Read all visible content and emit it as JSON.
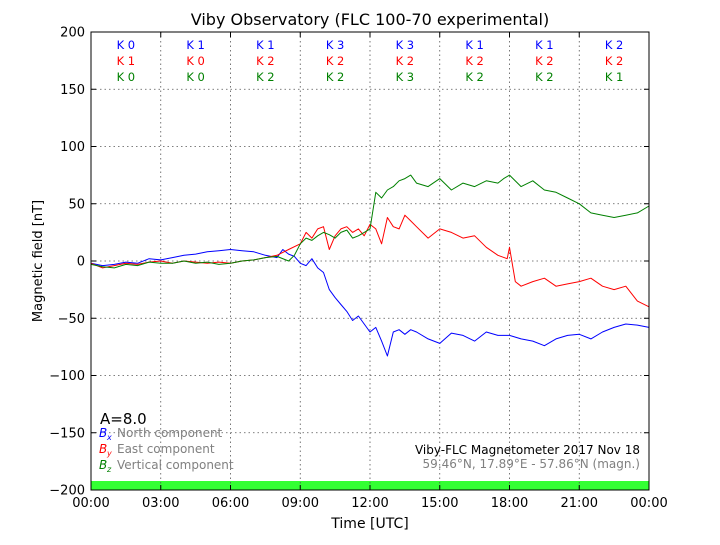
{
  "chart_data": {
    "type": "line",
    "title": "Viby Observatory (FLC 100-70 experimental)",
    "xlabel": "Time [UTC]",
    "ylabel": "Magnetic field [nT]",
    "x_ticks": [
      "00:00",
      "03:00",
      "06:00",
      "09:00",
      "12:00",
      "15:00",
      "18:00",
      "21:00",
      "00:00"
    ],
    "x_range_hours": [
      0,
      24
    ],
    "ylim": [
      -200,
      200
    ],
    "y_ticks": [
      -200,
      -150,
      -100,
      -50,
      0,
      50,
      100,
      150,
      200
    ],
    "grid": true,
    "k_index_rows": [
      {
        "label": "K",
        "color": "#0000ff",
        "values": [
          0,
          1,
          1,
          3,
          3,
          1,
          1,
          2
        ]
      },
      {
        "label": "K",
        "color": "#ff0000",
        "values": [
          1,
          0,
          2,
          2,
          2,
          2,
          2,
          2
        ]
      },
      {
        "label": "K",
        "color": "#008000",
        "values": [
          0,
          0,
          2,
          2,
          3,
          2,
          2,
          1
        ]
      }
    ],
    "a_index": "A=8.0",
    "legend_position": "bottom-left",
    "series": [
      {
        "key": "bx",
        "symbol": "B",
        "subscript": "x",
        "name": "North component",
        "color": "#0000ff",
        "x": [
          0,
          0.5,
          1,
          1.5,
          2,
          2.5,
          3,
          3.5,
          4,
          4.5,
          5,
          5.5,
          6,
          6.5,
          7,
          7.5,
          8,
          8.25,
          8.5,
          8.75,
          9,
          9.25,
          9.5,
          9.75,
          10,
          10.25,
          10.5,
          10.75,
          11,
          11.25,
          11.5,
          11.75,
          12,
          12.25,
          12.5,
          12.75,
          13,
          13.25,
          13.5,
          13.75,
          14,
          14.5,
          15,
          15.5,
          16,
          16.5,
          17,
          17.5,
          18,
          18.5,
          19,
          19.5,
          20,
          20.5,
          21,
          21.5,
          22,
          22.5,
          23,
          23.5,
          24
        ],
        "y": [
          -2,
          -4,
          -3,
          -1,
          -2,
          2,
          1,
          3,
          5,
          6,
          8,
          9,
          10,
          9,
          8,
          5,
          3,
          10,
          6,
          4,
          -2,
          -4,
          2,
          -6,
          -10,
          -25,
          -32,
          -38,
          -44,
          -52,
          -48,
          -55,
          -62,
          -58,
          -70,
          -83,
          -62,
          -60,
          -64,
          -60,
          -62,
          -68,
          -72,
          -63,
          -65,
          -70,
          -62,
          -65,
          -65,
          -68,
          -70,
          -74,
          -68,
          -65,
          -64,
          -68,
          -62,
          -58,
          -55,
          -56,
          -58
        ]
      },
      {
        "key": "by",
        "symbol": "B",
        "subscript": "y",
        "name": "East component",
        "color": "#ff0000",
        "x": [
          0,
          0.5,
          1,
          1.5,
          2,
          2.5,
          3,
          3.5,
          4,
          4.5,
          5,
          5.5,
          6,
          6.5,
          7,
          7.5,
          8,
          8.5,
          9,
          9.25,
          9.5,
          9.75,
          10,
          10.25,
          10.5,
          10.75,
          11,
          11.25,
          11.5,
          11.75,
          12,
          12.25,
          12.5,
          12.75,
          13,
          13.25,
          13.5,
          13.75,
          14,
          14.5,
          15,
          15.5,
          16,
          16.5,
          17,
          17.5,
          17.9,
          18,
          18.25,
          18.5,
          19,
          19.5,
          20,
          20.5,
          21,
          21.5,
          22,
          22.5,
          23,
          23.5,
          24
        ],
        "y": [
          -2,
          -6,
          -4,
          -2,
          -3,
          -1,
          0,
          -2,
          0,
          -1,
          -2,
          -1,
          -2,
          0,
          1,
          3,
          5,
          10,
          15,
          25,
          20,
          28,
          30,
          10,
          22,
          28,
          30,
          25,
          28,
          22,
          32,
          28,
          15,
          38,
          30,
          28,
          40,
          35,
          30,
          20,
          28,
          25,
          20,
          22,
          12,
          5,
          2,
          12,
          -18,
          -22,
          -18,
          -15,
          -22,
          -20,
          -18,
          -15,
          -22,
          -25,
          -22,
          -35,
          -40
        ]
      },
      {
        "key": "bz",
        "symbol": "B",
        "subscript": "z",
        "name": "Vertical component",
        "color": "#008000",
        "x": [
          0,
          0.5,
          1,
          1.5,
          2,
          2.5,
          3,
          3.5,
          4,
          4.5,
          5,
          5.5,
          6,
          6.5,
          7,
          7.5,
          8,
          8.5,
          8.75,
          9,
          9.25,
          9.5,
          9.75,
          10,
          10.25,
          10.5,
          10.75,
          11,
          11.25,
          11.5,
          11.75,
          12,
          12.25,
          12.5,
          12.75,
          13,
          13.25,
          13.5,
          13.75,
          14,
          14.5,
          15,
          15.5,
          16,
          16.5,
          17,
          17.5,
          17.75,
          18,
          18.5,
          19,
          19.5,
          20,
          20.5,
          21,
          21.5,
          22,
          22.5,
          23,
          23.5,
          24
        ],
        "y": [
          -3,
          -5,
          -6,
          -3,
          -4,
          -1,
          -2,
          -2,
          0,
          -2,
          -1,
          -3,
          -2,
          0,
          1,
          3,
          4,
          0,
          5,
          15,
          20,
          18,
          22,
          25,
          23,
          20,
          25,
          27,
          20,
          22,
          25,
          28,
          60,
          55,
          62,
          65,
          70,
          72,
          75,
          68,
          65,
          72,
          62,
          68,
          65,
          70,
          68,
          72,
          75,
          65,
          70,
          62,
          60,
          55,
          50,
          42,
          40,
          38,
          40,
          42,
          48
        ]
      }
    ],
    "annotation_title": "Viby-FLC Magnetometer 2017 Nov 18",
    "annotation_location": "59.46°N, 17.89°E - 57.86°N (magn.)"
  }
}
